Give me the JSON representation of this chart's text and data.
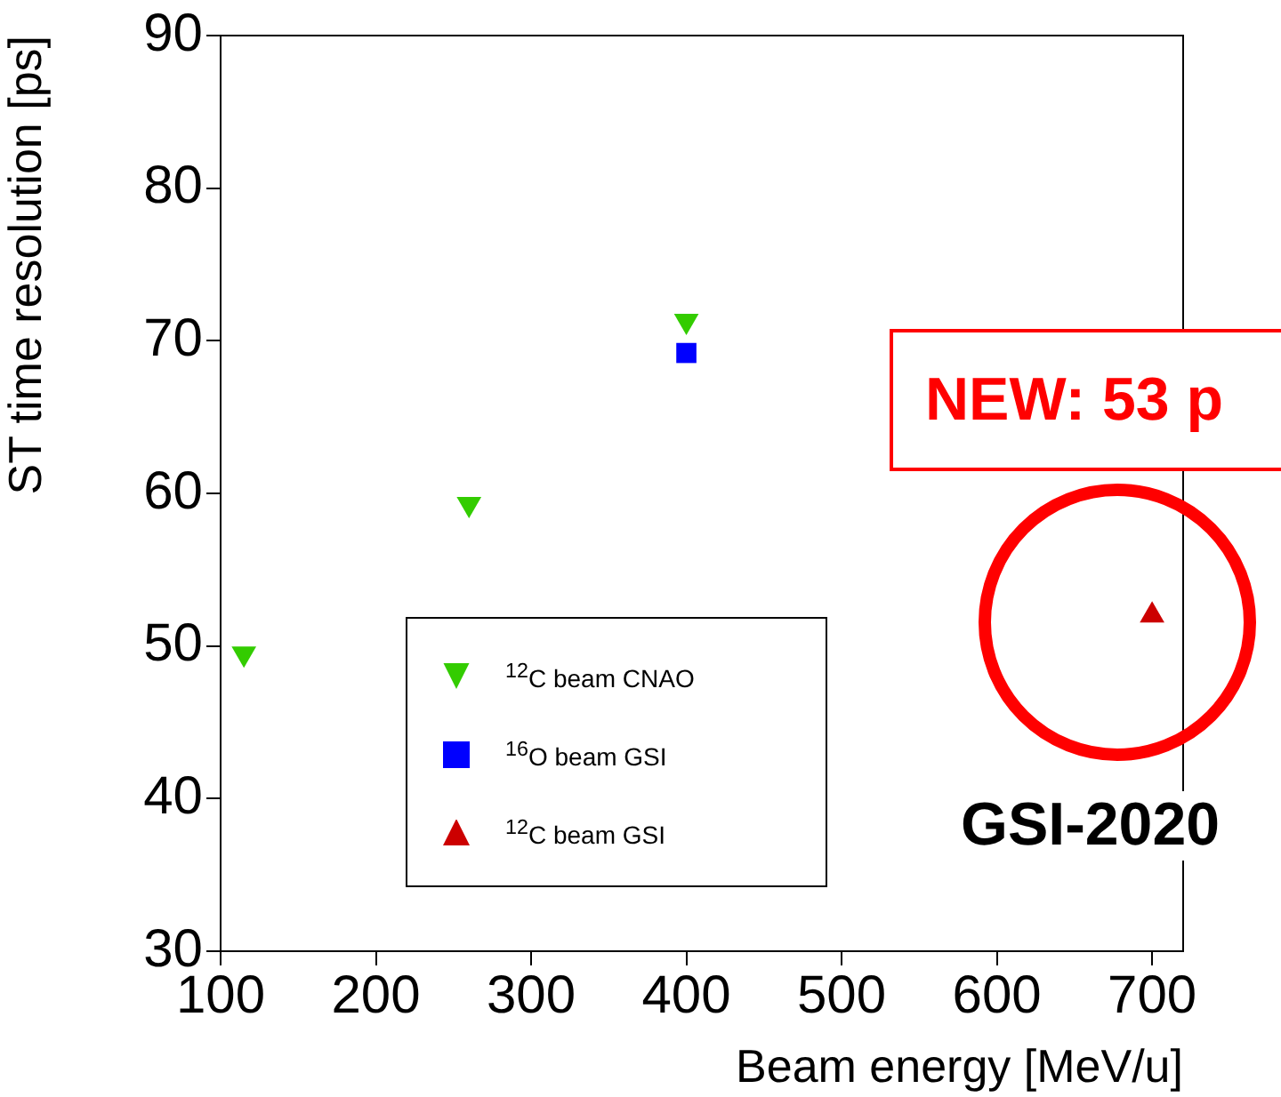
{
  "chart_data": {
    "type": "scatter",
    "xlabel": "Beam energy [MeV/u]",
    "ylabel": "ST time resolution [ps]",
    "xlim": [
      100,
      720
    ],
    "xticks": [
      100,
      200,
      300,
      400,
      500,
      600,
      700
    ],
    "ylim": [
      30,
      90
    ],
    "yticks": [
      30,
      40,
      50,
      60,
      70,
      80,
      90
    ],
    "grid": false,
    "legend": "bottom",
    "series": [
      {
        "name": "$^{12}$C beam CNAO",
        "color": "#33cc00",
        "marker": "triangle-down",
        "x": [
          115,
          260,
          400
        ],
        "values": [
          49.5,
          59.3,
          71.3
        ]
      },
      {
        "name": "$^{16}$O beam GSI",
        "color": "#0000ff",
        "marker": "square",
        "x": [
          400
        ],
        "values": [
          69.2
        ]
      },
      {
        "name": "$^{12}$C beam GSI",
        "color": "#cc0000",
        "marker": "triangle",
        "x": [
          700
        ],
        "values": [
          52
        ]
      }
    ],
    "annotations": [
      "NEW: 53 p",
      "GSI-2020"
    ]
  }
}
